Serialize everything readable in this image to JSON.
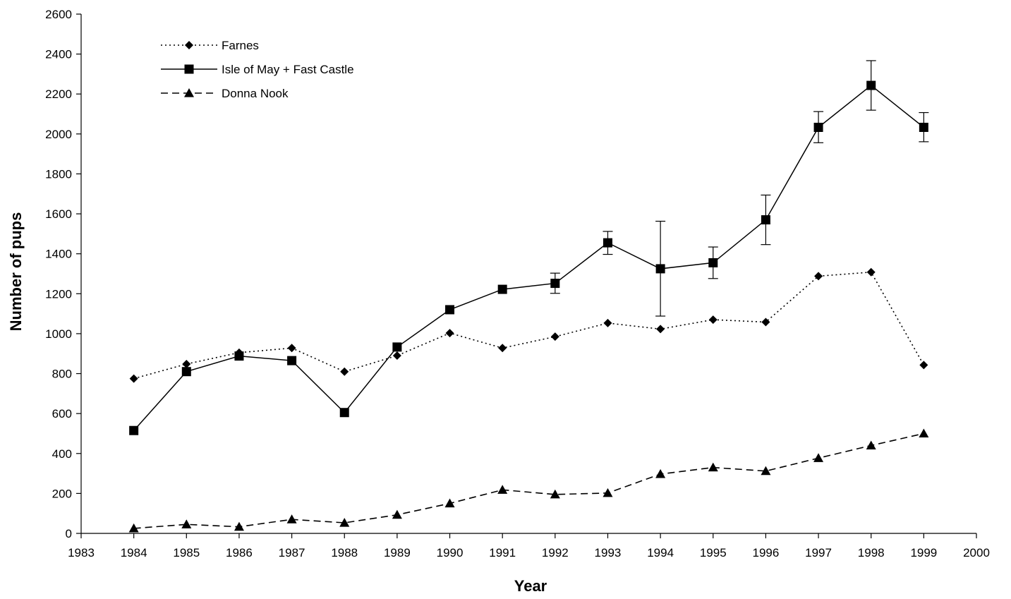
{
  "chart_data": {
    "type": "line",
    "title": "",
    "xlabel": "Year",
    "ylabel": "Number of pups",
    "xlim": [
      1983,
      2000
    ],
    "ylim": [
      0,
      2600
    ],
    "x_ticks": [
      "1983",
      "1984",
      "1985",
      "1986",
      "1987",
      "1988",
      "1989",
      "1990",
      "1991",
      "1992",
      "1993",
      "1994",
      "1995",
      "1996",
      "1997",
      "1998",
      "1999",
      "2000"
    ],
    "y_ticks": [
      "0",
      "200",
      "400",
      "600",
      "800",
      "1000",
      "1200",
      "1400",
      "1600",
      "1800",
      "2000",
      "2200",
      "2400",
      "2600"
    ],
    "grid": false,
    "legend_position": "top-left",
    "x": [
      1984,
      1985,
      1986,
      1987,
      1988,
      1989,
      1990,
      1991,
      1992,
      1993,
      1994,
      1995,
      1996,
      1997,
      1998,
      1999
    ],
    "series": [
      {
        "name": "Farnes",
        "marker": "diamond",
        "line_style": "dotted",
        "values": [
          775,
          848,
          905,
          928,
          810,
          890,
          1003,
          928,
          985,
          1053,
          1023,
          1070,
          1058,
          1288,
          1308,
          843
        ]
      },
      {
        "name": "Isle of May + Fast Castle",
        "marker": "square",
        "line_style": "solid",
        "values": [
          515,
          810,
          888,
          865,
          605,
          933,
          1120,
          1222,
          1252,
          1455,
          1325,
          1355,
          1570,
          2033,
          2243,
          2033
        ],
        "error_bars": [
          {
            "x": 1992,
            "low": 1202,
            "high": 1303
          },
          {
            "x": 1993,
            "low": 1397,
            "high": 1512
          },
          {
            "x": 1994,
            "low": 1088,
            "high": 1563
          },
          {
            "x": 1995,
            "low": 1276,
            "high": 1434
          },
          {
            "x": 1996,
            "low": 1446,
            "high": 1694
          },
          {
            "x": 1997,
            "low": 1956,
            "high": 2112
          },
          {
            "x": 1998,
            "low": 2119,
            "high": 2367
          },
          {
            "x": 1999,
            "low": 1961,
            "high": 2107
          }
        ]
      },
      {
        "name": "Donna Nook",
        "marker": "triangle",
        "line_style": "dashed",
        "values": [
          25,
          45,
          33,
          70,
          53,
          93,
          150,
          218,
          195,
          202,
          297,
          330,
          312,
          377,
          440,
          500
        ]
      }
    ]
  }
}
